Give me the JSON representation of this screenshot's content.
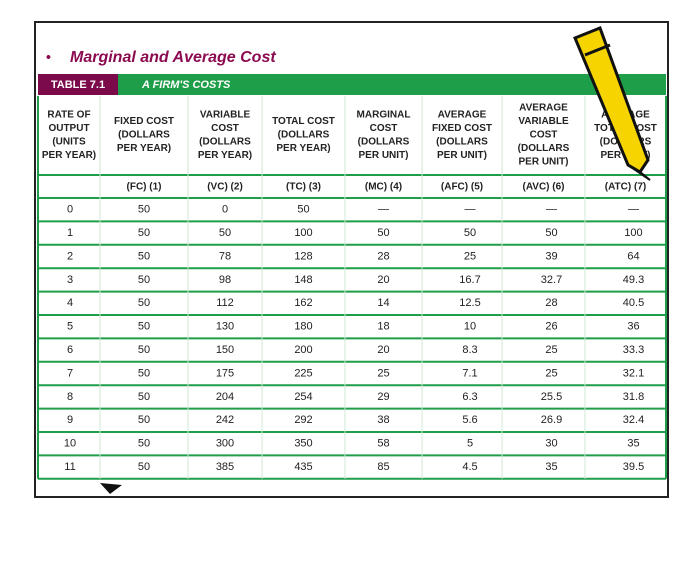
{
  "header": {
    "bullet": "•",
    "title": "Marginal and Average Cost"
  },
  "table": {
    "label": "TABLE 7.1",
    "caption": "A FIRM'S COSTS",
    "columns": [
      {
        "heading": [
          "RATE OF",
          "OUTPUT",
          "(UNITS",
          "PER YEAR)"
        ],
        "abbrev": null
      },
      {
        "heading": [
          "FIXED COST",
          "(DOLLARS",
          "PER YEAR)"
        ],
        "abbrev": "(FC) (1)"
      },
      {
        "heading": [
          "VARIABLE",
          "COST",
          "(DOLLARS",
          "PER YEAR)"
        ],
        "abbrev": "(VC) (2)"
      },
      {
        "heading": [
          "TOTAL COST",
          "(DOLLARS",
          "PER YEAR)"
        ],
        "abbrev": "(TC) (3)"
      },
      {
        "heading": [
          "MARGINAL",
          "COST",
          "(DOLLARS",
          "PER UNIT)"
        ],
        "abbrev": "(MC) (4)"
      },
      {
        "heading": [
          "AVERAGE",
          "FIXED COST",
          "(DOLLARS",
          "PER UNIT)"
        ],
        "abbrev": "(AFC) (5)"
      },
      {
        "heading": [
          "AVERAGE",
          "VARIABLE",
          "COST",
          "(DOLLARS",
          "PER UNIT)"
        ],
        "abbrev": "(AVC) (6)"
      },
      {
        "heading": [
          "AVERAGE",
          "TOTAL COST",
          "(DOLLARS",
          "PER UNIT)"
        ],
        "abbrev": "(ATC) (7)"
      }
    ],
    "rows": [
      [
        "0",
        "50",
        "0",
        "50",
        "—",
        "—",
        "—",
        "—"
      ],
      [
        "1",
        "50",
        "50",
        "100",
        "50",
        "50",
        "50",
        "100"
      ],
      [
        "2",
        "50",
        "78",
        "128",
        "28",
        "25",
        "39",
        "64"
      ],
      [
        "3",
        "50",
        "98",
        "148",
        "20",
        "16.7",
        "32.7",
        "49.3"
      ],
      [
        "4",
        "50",
        "112",
        "162",
        "14",
        "12.5",
        "28",
        "40.5"
      ],
      [
        "5",
        "50",
        "130",
        "180",
        "18",
        "10",
        "26",
        "36"
      ],
      [
        "6",
        "50",
        "150",
        "200",
        "20",
        "8.3",
        "25",
        "33.3"
      ],
      [
        "7",
        "50",
        "175",
        "225",
        "25",
        "7.1",
        "25",
        "32.1"
      ],
      [
        "8",
        "50",
        "204",
        "254",
        "29",
        "6.3",
        "25.5",
        "31.8"
      ],
      [
        "9",
        "50",
        "242",
        "292",
        "38",
        "5.6",
        "26.9",
        "32.4"
      ],
      [
        "10",
        "50",
        "300",
        "350",
        "58",
        "5",
        "30",
        "35"
      ],
      [
        "11",
        "50",
        "385",
        "435",
        "85",
        "4.5",
        "35",
        "39.5"
      ]
    ]
  }
}
